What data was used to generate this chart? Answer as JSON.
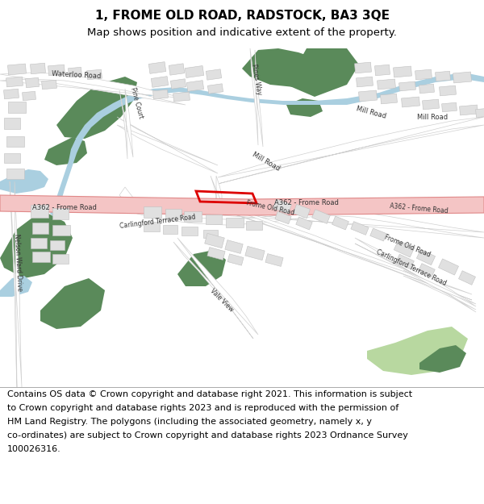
{
  "title": "1, FROME OLD ROAD, RADSTOCK, BA3 3QE",
  "subtitle": "Map shows position and indicative extent of the property.",
  "footer_lines": [
    "Contains OS data © Crown copyright and database right 2021. This information is subject",
    "to Crown copyright and database rights 2023 and is reproduced with the permission of",
    "HM Land Registry. The polygons (including the associated geometry, namely x, y",
    "co-ordinates) are subject to Crown copyright and database rights 2023 Ordnance Survey",
    "100026316."
  ],
  "map_bg": "#f2f1ee",
  "road_white": "#ffffff",
  "road_outline": "#d0d0d0",
  "a_road_fill": "#f4c5c5",
  "a_road_edge": "#e08888",
  "green_dark": "#5a8a5a",
  "green_light": "#b8d8a0",
  "water_color": "#aacfe0",
  "building_fill": "#e0e0e0",
  "building_edge": "#c0c0c0",
  "plot_edge": "#dd0000",
  "title_fontsize": 11,
  "subtitle_fontsize": 9.5,
  "footer_fontsize": 8.0,
  "label_fontsize": 6.0,
  "label_color": "#333333"
}
